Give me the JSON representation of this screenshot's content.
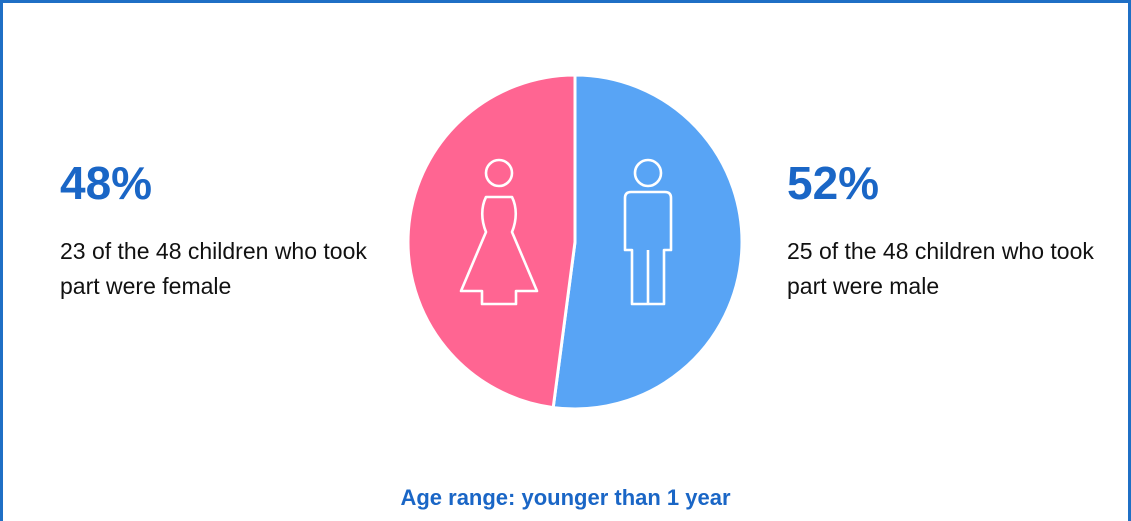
{
  "chart_data": {
    "type": "pie",
    "categories": [
      "Female",
      "Male"
    ],
    "values": [
      23,
      25
    ],
    "percent_labels": [
      "48%",
      "52%"
    ],
    "colors": [
      "#ff6592",
      "#58a4f5"
    ],
    "icons": [
      "female-figure-icon",
      "male-figure-icon"
    ]
  },
  "female": {
    "percent": "48%",
    "description": "23 of the 48 children who took part were female"
  },
  "male": {
    "percent": "52%",
    "description": "25 of the 48 children who took part were male"
  },
  "footer": {
    "age_range": "Age range: younger than 1 year"
  },
  "colors": {
    "border": "#1f6fc5",
    "heading": "#1a66c6"
  }
}
